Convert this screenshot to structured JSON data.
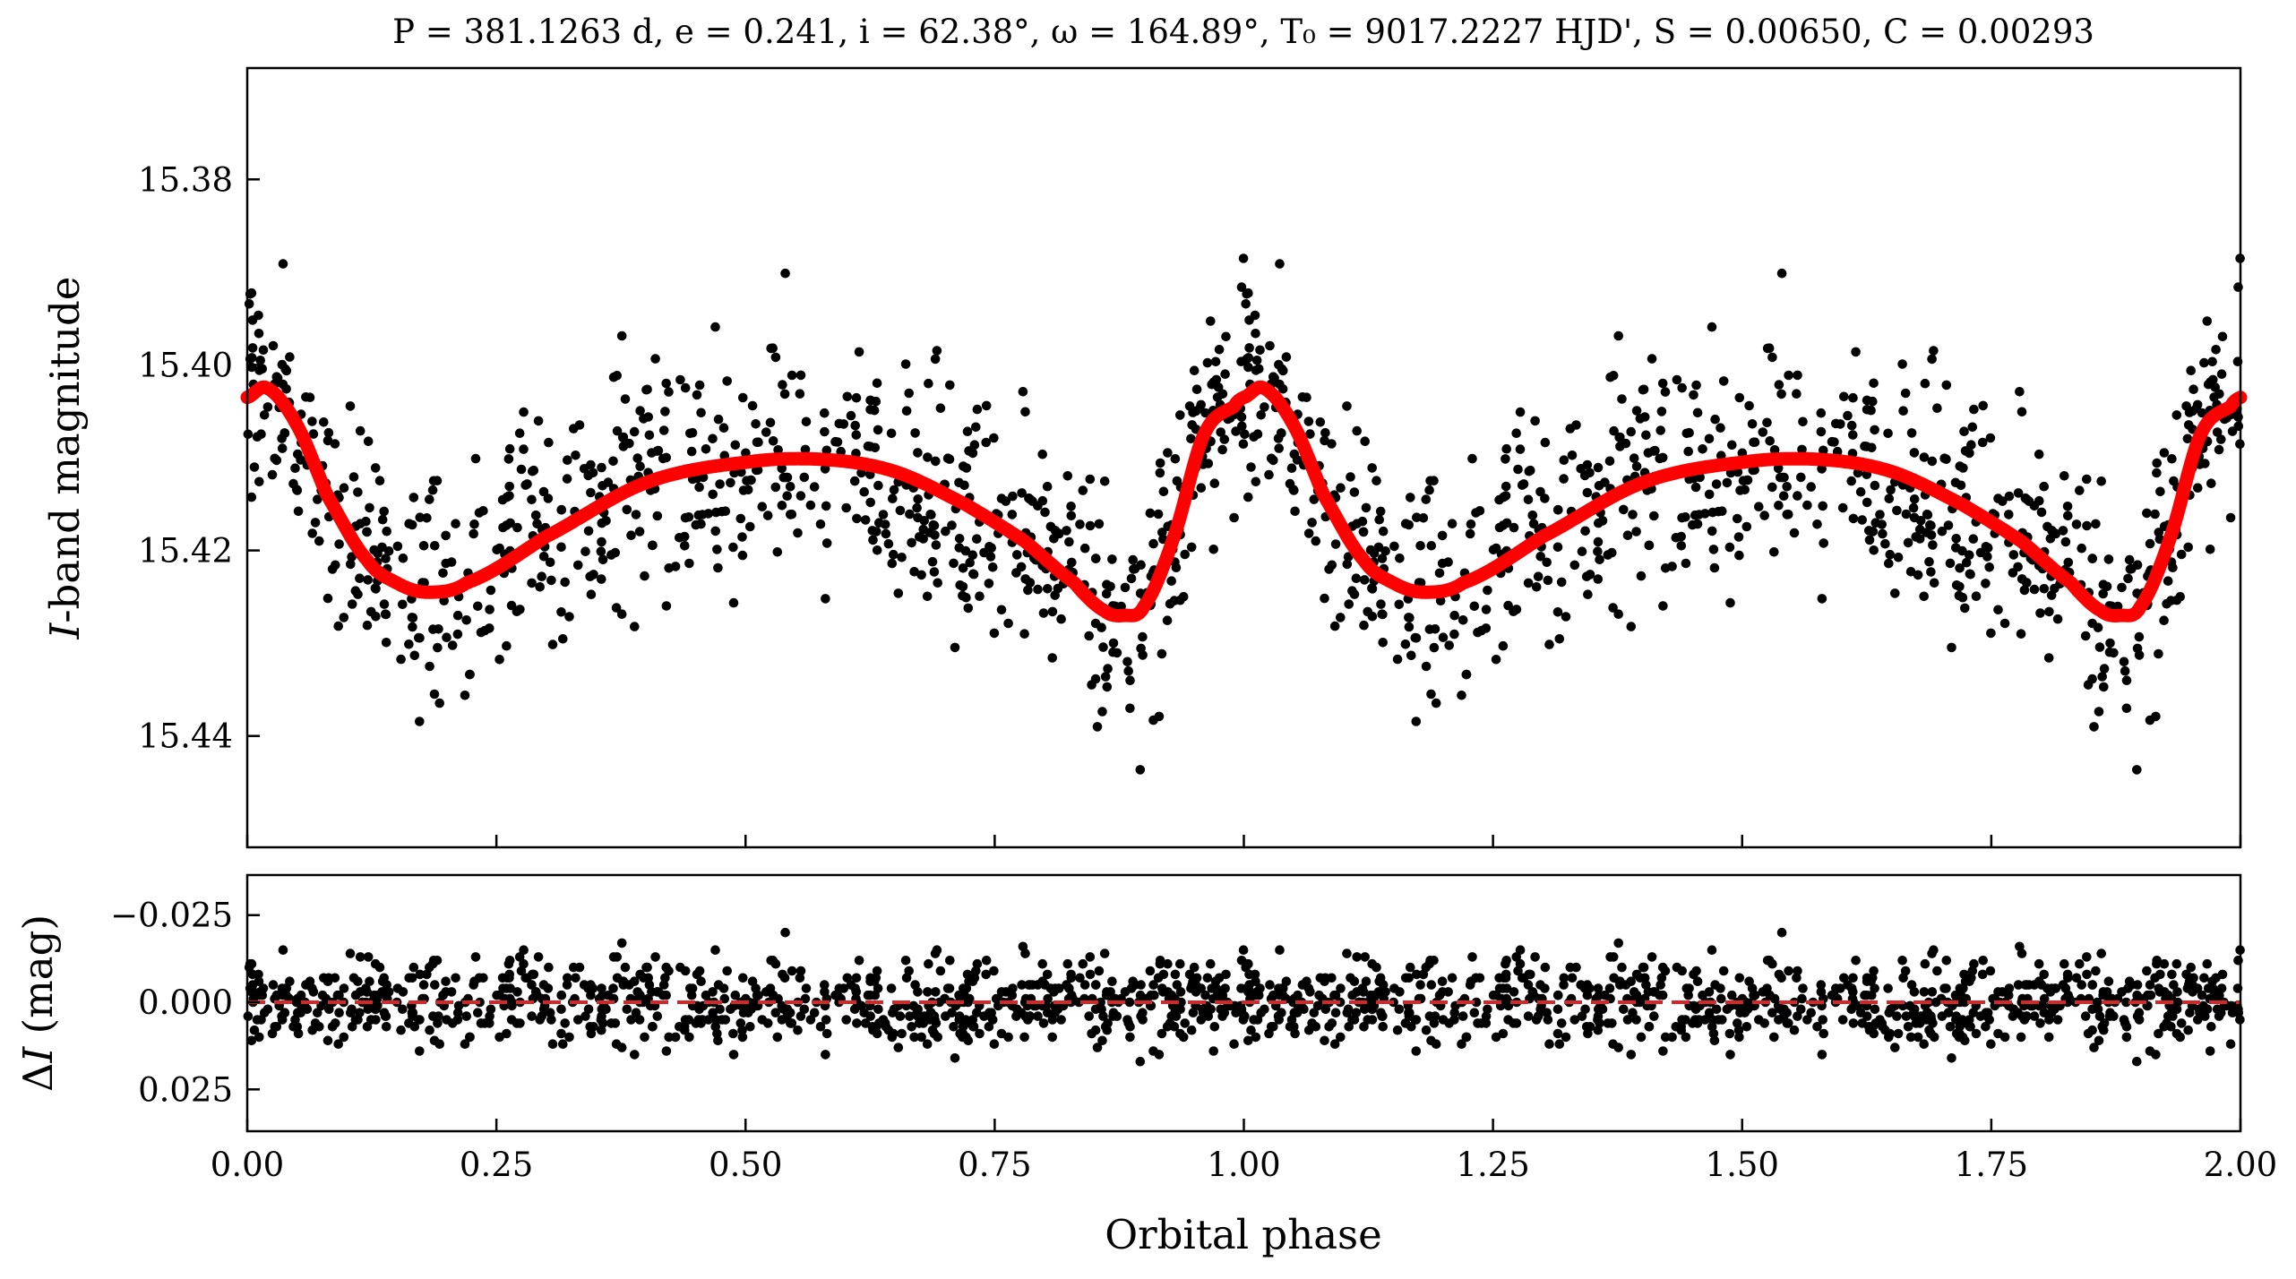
{
  "chart_data": [
    {
      "type": "scatter",
      "panel": "top",
      "title": "P = 381.1263 d, e = 0.241, i = 62.38°, ω = 164.89°, T₀ = 9017.2227 HJD', S = 0.00650, C = 0.00293",
      "xlabel": "",
      "ylabel": "I-band magnitude",
      "ylabel_italic": "I",
      "ylabel_rest": "-band magnitude",
      "xlim": [
        0.0,
        2.0
      ],
      "ylim": [
        15.452,
        15.368
      ],
      "y_inverted": true,
      "yticks": [
        15.38,
        15.4,
        15.42,
        15.44
      ],
      "ytick_labels": [
        "15.38",
        "15.40",
        "15.42",
        "15.44"
      ],
      "xticks": [
        0.0,
        0.25,
        0.5,
        0.75,
        1.0,
        1.25,
        1.5,
        1.75,
        2.0
      ],
      "grid": false,
      "series": [
        {
          "name": "observed points",
          "kind": "scatter",
          "color": "#000000",
          "description": "phase-folded I-band photometry repeated over two cycles (~1600 points shown)"
        },
        {
          "name": "model curve",
          "kind": "line",
          "color": "#ff0000",
          "x": [
            0.0,
            0.02,
            0.05,
            0.08,
            0.12,
            0.15,
            0.18,
            0.22,
            0.3,
            0.4,
            0.5,
            0.58,
            0.65,
            0.72,
            0.78,
            0.83,
            0.86,
            0.88,
            0.9,
            0.93,
            0.96,
            0.99,
            1.0
          ],
          "y": [
            15.4035,
            15.4025,
            15.4065,
            15.414,
            15.421,
            15.4235,
            15.4245,
            15.4235,
            15.4185,
            15.4127,
            15.4105,
            15.4102,
            15.4115,
            15.415,
            15.419,
            15.4235,
            15.4265,
            15.427,
            15.426,
            15.4185,
            15.4075,
            15.4045,
            15.4035
          ],
          "repeats_every": 1.0
        }
      ]
    },
    {
      "type": "scatter",
      "panel": "bottom",
      "xlabel": "Orbital phase",
      "ylabel": "ΔI (mag)",
      "ylabel_italic": "I",
      "ylabel_prefix": "Δ",
      "ylabel_rest": " (mag)",
      "xlim": [
        0.0,
        2.0
      ],
      "ylim": [
        0.037,
        -0.0365
      ],
      "y_inverted": true,
      "yticks": [
        -0.025,
        0.0,
        0.025
      ],
      "ytick_labels": [
        "−0.025",
        "0.000",
        "0.025"
      ],
      "xticks": [
        0.0,
        0.25,
        0.5,
        0.75,
        1.0,
        1.25,
        1.5,
        1.75,
        2.0
      ],
      "xtick_labels": [
        "0.00",
        "0.25",
        "0.50",
        "0.75",
        "1.00",
        "1.25",
        "1.50",
        "1.75",
        "2.00"
      ],
      "grid": false,
      "series": [
        {
          "name": "residuals",
          "kind": "scatter",
          "color": "#000000",
          "spread_sigma_mag": 0.0065
        },
        {
          "name": "zero line",
          "kind": "dashed-line",
          "color": "#d62728",
          "y": 0.0
        }
      ]
    }
  ]
}
